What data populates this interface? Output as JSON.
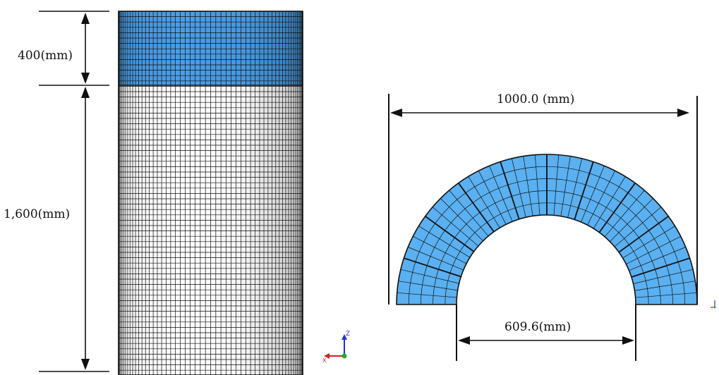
{
  "column_view": {
    "top_section_label": "400(mm)",
    "bottom_section_label": "1,600(mm)",
    "top_section_color": "#4a9ee8",
    "body_color": "#ffffff",
    "mesh_color": "#111111",
    "axis_triad": {
      "z_label": "Z",
      "x_label": "X",
      "z_color": "#2233cc",
      "x_color": "#cc2222",
      "y_color": "#22aa33"
    }
  },
  "section_view": {
    "outer_width_label": "1000.0 (mm)",
    "inner_width_label": "609.6(mm)",
    "fill_color": "#5ab0f0",
    "mesh_color": "#111111",
    "block_count": 10
  }
}
